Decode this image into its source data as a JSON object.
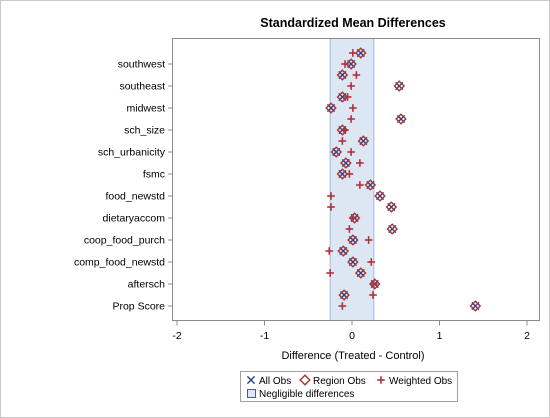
{
  "chart_data": {
    "type": "scatter",
    "title": "Standardized Mean Differences",
    "xlabel": "Difference (Treated - Control)",
    "xlim": [
      -2,
      2
    ],
    "xticks": [
      -2,
      -1,
      0,
      1,
      2
    ],
    "grid": false,
    "negligible_band": {
      "range": [
        -0.25,
        0.25
      ],
      "label": "Negligible differences",
      "fill": "#dde7f4",
      "stroke": "#a3badb"
    },
    "categories": [
      "",
      "southwest",
      "",
      "southeast",
      "",
      "midwest",
      "",
      "sch_size",
      "",
      "sch_urbanicity",
      "",
      "fsmc",
      "",
      "food_newstd",
      "",
      "dietaryaccom",
      "",
      "coop_food_purch",
      "",
      "comp_food_newstd",
      "",
      "aftersch",
      "",
      "Prop Score"
    ],
    "series": [
      {
        "name": "All Obs",
        "marker": "x",
        "color": "#2f3f93",
        "values": [
          0.1,
          -0.01,
          -0.11,
          0.54,
          -0.11,
          -0.24,
          0.56,
          -0.11,
          0.13,
          -0.18,
          -0.07,
          -0.11,
          0.21,
          0.32,
          0.45,
          0.03,
          0.46,
          0.01,
          -0.1,
          0.01,
          0.1,
          0.26,
          -0.09,
          1.41
        ]
      },
      {
        "name": "Region Obs",
        "marker": "diamond",
        "color": "#a5352c",
        "values": [
          0.1,
          -0.01,
          -0.11,
          0.54,
          -0.11,
          -0.24,
          0.56,
          -0.11,
          0.13,
          -0.18,
          -0.07,
          -0.11,
          0.21,
          0.32,
          0.45,
          0.03,
          0.46,
          0.01,
          -0.1,
          0.01,
          0.1,
          0.26,
          -0.09,
          1.41
        ]
      },
      {
        "name": "Weighted Obs",
        "marker": "plus",
        "color": "#b3303a",
        "values": [
          0.01,
          -0.08,
          0.05,
          -0.01,
          -0.05,
          0.01,
          -0.01,
          -0.08,
          -0.11,
          -0.01,
          0.09,
          -0.03,
          0.09,
          -0.24,
          -0.24,
          0.01,
          -0.03,
          0.19,
          -0.26,
          0.22,
          -0.25,
          0.25,
          0.24,
          -0.11
        ]
      }
    ],
    "legend": {
      "position": "bottom"
    }
  }
}
